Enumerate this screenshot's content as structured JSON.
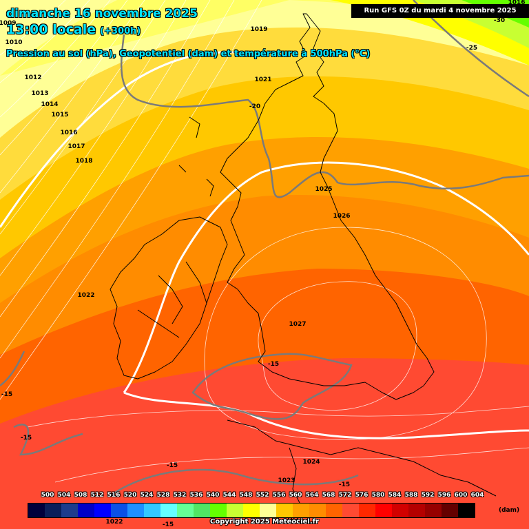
{
  "header": {
    "date": "dimanche 16 novembre 2025",
    "time": "13:00 locale",
    "forecast_hour": "(+300h)",
    "parameters": "Pression au sol (hPa), Geopotentiel (dam) et température à 500hPa (°C)",
    "run": "Run GFS 0Z du mardi 4 novembre 2025"
  },
  "footer": {
    "copyright": "Copyright 2025 Meteociel.fr"
  },
  "legend": {
    "unit": "(dam)",
    "values": [
      "500",
      "504",
      "508",
      "512",
      "516",
      "520",
      "524",
      "528",
      "532",
      "536",
      "540",
      "544",
      "548",
      "552",
      "556",
      "560",
      "564",
      "568",
      "572",
      "576",
      "580",
      "584",
      "588",
      "592",
      "596",
      "600",
      "604"
    ],
    "colors": [
      "#00003c",
      "#0a1e5a",
      "#1e3c8c",
      "#0000c8",
      "#0000ff",
      "#0a50e6",
      "#1e90ff",
      "#32c8ff",
      "#64ffff",
      "#64ff96",
      "#50e664",
      "#64ff00",
      "#c8ff32",
      "#ffff00",
      "#ffff96",
      "#ffc800",
      "#ffa000",
      "#ff8c00",
      "#ff6400",
      "#ff4a32",
      "#ff2800",
      "#ff0000",
      "#d20000",
      "#b40000",
      "#960000",
      "#640000",
      "#000000"
    ]
  },
  "pressure_labels": [
    "1009",
    "1010",
    "1012",
    "1013",
    "1014",
    "1015",
    "1016",
    "1017",
    "1018",
    "1019",
    "1021",
    "1022",
    "1025",
    "1026",
    "1027",
    "1024",
    "1023",
    "1022",
    "1021",
    "1016"
  ],
  "temperature_labels": [
    "-30",
    "-25",
    "-20",
    "-15",
    "-15",
    "-15",
    "-15",
    "-15",
    "-15"
  ]
}
